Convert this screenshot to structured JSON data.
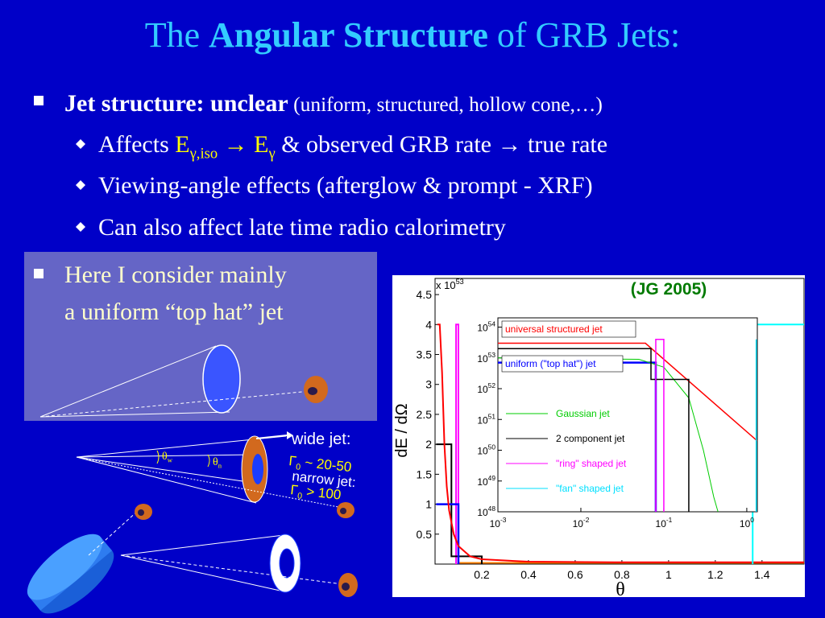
{
  "title": {
    "parts": [
      {
        "text": "The "
      },
      {
        "text": "Angular Structure",
        "style": "bold"
      },
      {
        "text": " of GRB Jets:"
      }
    ]
  },
  "bullets": [
    {
      "parts": [
        {
          "text": "Jet structure: unclear",
          "style": "bold"
        },
        {
          "text": " (uniform, structured, hollow cone,…)",
          "style": "small"
        }
      ],
      "sub_bullets": [
        {
          "parts": [
            {
              "text": "Affects "
            },
            {
              "text": "E",
              "style": "yellow"
            },
            {
              "text": "γ,iso",
              "style": "yellow-sub"
            },
            {
              "text": " → ",
              "style": "yellow"
            },
            {
              "text": "E",
              "style": "yellow"
            },
            {
              "text": "γ",
              "style": "yellow-sub"
            },
            {
              "text": " & observed GRB rate → true rate"
            }
          ]
        },
        {
          "parts": [
            {
              "text": "Viewing-angle effects (afterglow & prompt - XRF)"
            }
          ]
        },
        {
          "parts": [
            {
              "text": "Can also affect late time radio calorimetry"
            }
          ]
        }
      ]
    }
  ],
  "box": {
    "lines": [
      "Here I consider mainly",
      "a uniform “top hat” jet"
    ]
  },
  "diagram": {
    "wide_label": "wide jet:",
    "wide_gamma": {
      "parts": [
        {
          "text": "Γ"
        },
        {
          "text": "0",
          "style": "sub"
        },
        {
          "text": " ~ 20-50"
        }
      ]
    },
    "narrow_label": "narrow jet:",
    "narrow_gamma": {
      "parts": [
        {
          "text": "Γ"
        },
        {
          "text": "0",
          "style": "sub"
        },
        {
          "text": " > 100"
        }
      ]
    },
    "theta_w": {
      "parts": [
        {
          "text": "θ"
        },
        {
          "text": "w",
          "style": "sub"
        }
      ]
    },
    "theta_n": {
      "parts": [
        {
          "text": "θ"
        },
        {
          "text": "n",
          "style": "sub"
        }
      ]
    }
  },
  "chart_data": [
    {
      "type": "line",
      "annotation": "(JG 2005)",
      "multiplier": {
        "label": "x 10",
        "exp": "53"
      },
      "x_label": "θ",
      "y_label": "dE / dΩ",
      "xlim": [
        0,
        1.58
      ],
      "ylim": [
        0,
        4.77
      ],
      "xticks": [
        0.2,
        0.4,
        0.6,
        0.8,
        1,
        1.2,
        1.4
      ],
      "yticks": [
        0.5,
        1,
        1.5,
        2,
        2.5,
        3,
        3.5,
        4,
        4.5
      ],
      "series": [
        {
          "color": "#ff8000",
          "x": [
            0.1,
            1.58
          ],
          "values": [
            0.02,
            0.02
          ]
        },
        {
          "color": "#ff00ff",
          "x": [
            0.09,
            0.09,
            0.1,
            0.1
          ],
          "values": [
            0,
            4,
            4,
            0
          ]
        },
        {
          "color": "#000000",
          "x": [
            0.005,
            0.07,
            0.07,
            0.2,
            0.2
          ],
          "values": [
            2,
            2,
            0.13,
            0.13,
            0
          ]
        },
        {
          "color": "#0000ff",
          "x": [
            0.005,
            0.1,
            0.1
          ],
          "values": [
            1,
            1,
            0
          ]
        },
        {
          "color": "#ff0000",
          "x": [
            0.01,
            0.02,
            0.03,
            0.04,
            0.05,
            0.06,
            0.08,
            0.1,
            0.15,
            0.2,
            0.4,
            0.8,
            1.2,
            1.58
          ],
          "values": [
            4,
            4,
            3.2,
            2,
            1.3,
            0.9,
            0.5,
            0.3,
            0.13,
            0.08,
            0.04,
            0.03,
            0.03,
            0.03
          ]
        },
        {
          "color": "#00ffff",
          "x": [
            1.36,
            1.36,
            1.58
          ],
          "values": [
            0,
            4,
            4
          ]
        }
      ]
    },
    {
      "type": "line",
      "log": true,
      "xlim": [
        0.001,
        1.34
      ],
      "ylim": [
        1e+48,
        2e+54
      ],
      "xticks": [
        {
          "value": 0.001,
          "label": "10",
          "exp": "-3"
        },
        {
          "value": 0.01,
          "label": "10",
          "exp": "-2"
        },
        {
          "value": 0.1,
          "label": "10",
          "exp": "-1"
        },
        {
          "value": 1,
          "label": "10",
          "exp": "0"
        }
      ],
      "yticks": [
        {
          "value": 1e+48,
          "label": "10",
          "exp": "48"
        },
        {
          "value": 1e+49,
          "label": "10",
          "exp": "49"
        },
        {
          "value": 1e+50,
          "label": "10",
          "exp": "50"
        },
        {
          "value": 1e+51,
          "label": "10",
          "exp": "51"
        },
        {
          "value": 1e+52,
          "label": "10",
          "exp": "52"
        },
        {
          "value": 1e+53,
          "label": "10",
          "exp": "53"
        },
        {
          "value": 1e+54,
          "label": "10",
          "exp": "54"
        }
      ],
      "series": [
        {
          "name": "universal structured jet",
          "color": "#ff0000",
          "x": [
            0.001,
            0.06,
            1.34
          ],
          "values": [
            3e+53,
            3e+53,
            2e+50
          ]
        },
        {
          "name": "uniform (\"top hat\") jet",
          "color": "#0000ff",
          "x": [
            0.001,
            0.08,
            0.08
          ],
          "values": [
            7e+52,
            7e+52,
            1e+48
          ]
        },
        {
          "name": "Gaussian jet",
          "color": "#00cc00",
          "x": [
            0.001,
            0.05,
            0.1,
            0.2,
            0.3,
            0.4,
            0.45
          ],
          "values": [
            1e+53,
            9e+52,
            5e+52,
            5e+51,
            1e+50,
            3e+48,
            1e+48
          ]
        },
        {
          "name": "2 component jet",
          "color": "#000000",
          "x": [
            0.001,
            0.07,
            0.07,
            0.2,
            0.2
          ],
          "values": [
            2e+53,
            2e+53,
            2e+52,
            2e+52,
            1e+48
          ]
        },
        {
          "name": "\"ring\" shaped jet",
          "color": "#ff00ff",
          "x": [
            0.08,
            0.08,
            0.1,
            0.1
          ],
          "values": [
            1e+48,
            4e+53,
            4e+53,
            1e+48
          ]
        },
        {
          "name": "\"fan\" shaped jet",
          "color": "#00e0ff",
          "x": [
            1.3,
            1.3
          ],
          "values": [
            1e+48,
            4e+53
          ]
        }
      ]
    }
  ]
}
